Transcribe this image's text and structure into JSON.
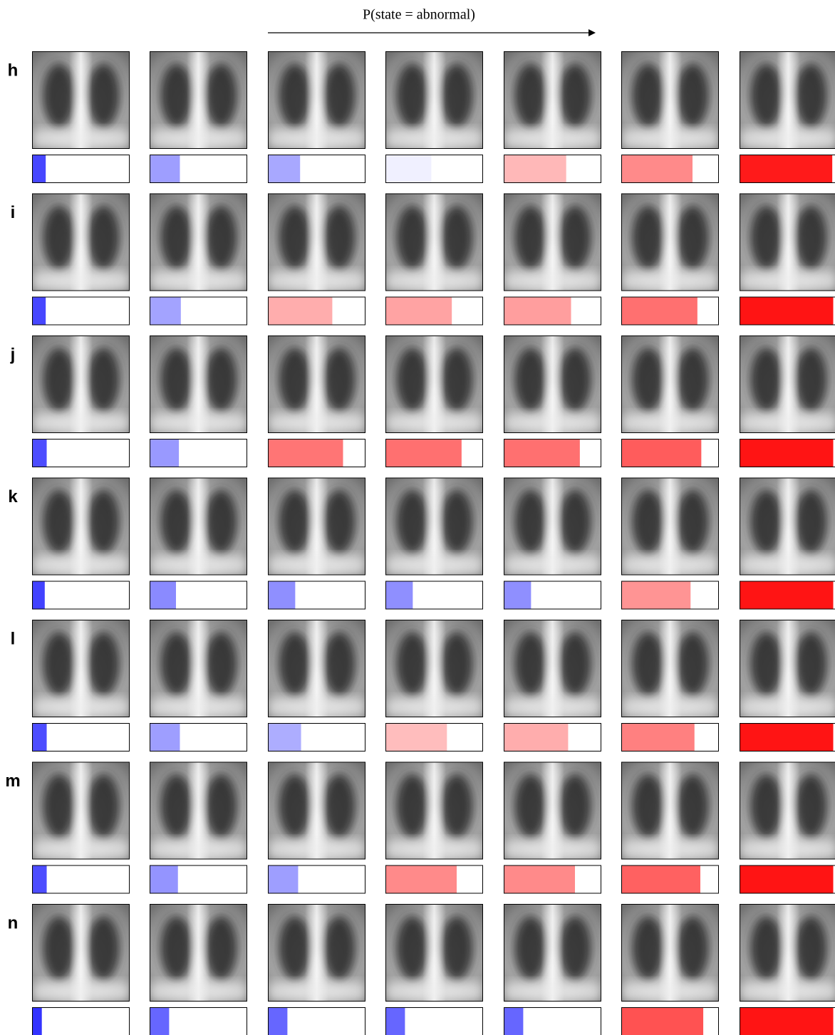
{
  "header": {
    "title": "P(state = abnormal)"
  },
  "rows": [
    {
      "label": "h",
      "probabilities": [
        0.14,
        0.31,
        0.33,
        0.47,
        0.64,
        0.73,
        0.95
      ]
    },
    {
      "label": "i",
      "probabilities": [
        0.14,
        0.32,
        0.66,
        0.68,
        0.69,
        0.78,
        0.96
      ]
    },
    {
      "label": "j",
      "probabilities": [
        0.15,
        0.3,
        0.77,
        0.78,
        0.78,
        0.82,
        0.96
      ]
    },
    {
      "label": "k",
      "probabilities": [
        0.13,
        0.27,
        0.28,
        0.28,
        0.28,
        0.71,
        0.96
      ]
    },
    {
      "label": "l",
      "probabilities": [
        0.15,
        0.31,
        0.34,
        0.63,
        0.66,
        0.75,
        0.96
      ]
    },
    {
      "label": "m",
      "probabilities": [
        0.15,
        0.29,
        0.31,
        0.73,
        0.73,
        0.81,
        0.96
      ]
    },
    {
      "label": "n",
      "probabilities": [
        0.1,
        0.2,
        0.2,
        0.2,
        0.2,
        0.84,
        0.96
      ]
    }
  ]
}
